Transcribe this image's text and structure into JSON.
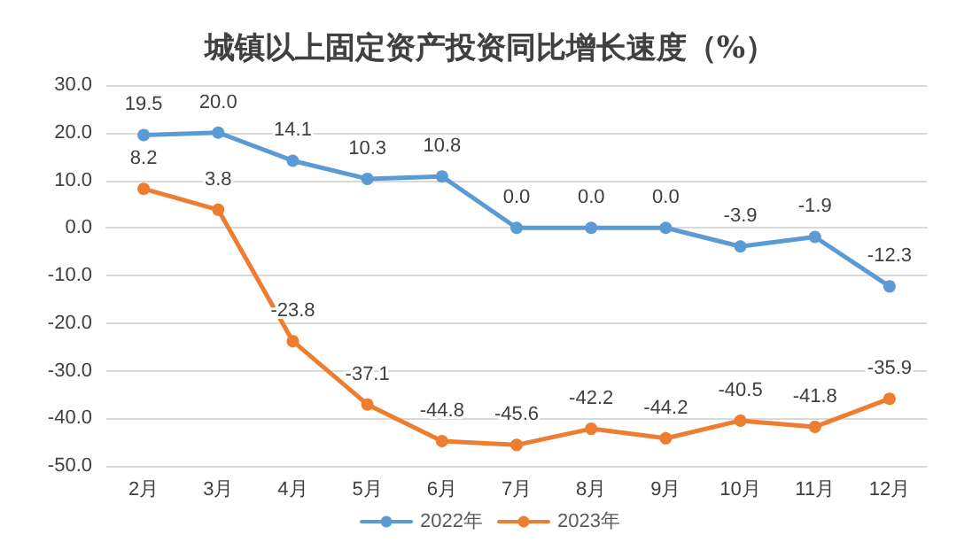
{
  "chart_data": {
    "type": "line",
    "title": "城镇以上固定资产投资同比增长速度（%）",
    "categories": [
      "2月",
      "3月",
      "4月",
      "5月",
      "6月",
      "7月",
      "8月",
      "9月",
      "10月",
      "11月",
      "12月"
    ],
    "series": [
      {
        "name": "2022年",
        "color": "#5b9bd5",
        "values": [
          19.5,
          20.0,
          14.1,
          10.3,
          10.8,
          0.0,
          0.0,
          0.0,
          -3.9,
          -1.9,
          -12.3
        ],
        "value_labels": [
          "19.5",
          "20.0",
          "14.1",
          "10.3",
          "10.8",
          "0.0",
          "0.0",
          "0.0",
          "-3.9",
          "-1.9",
          "-12.3"
        ]
      },
      {
        "name": "2023年",
        "color": "#ed7d31",
        "values": [
          8.2,
          3.8,
          -23.8,
          -37.1,
          -44.8,
          -45.6,
          -42.2,
          -44.2,
          -40.5,
          -41.8,
          -35.9
        ],
        "value_labels": [
          "8.2",
          "3.8",
          "-23.8",
          "-37.1",
          "-44.8",
          "-45.6",
          "-42.2",
          "-44.2",
          "-40.5",
          "-41.8",
          "-35.9"
        ]
      }
    ],
    "ylim": [
      -50,
      30
    ],
    "yticks": [
      {
        "value": -50,
        "label": "-50.0"
      },
      {
        "value": -40,
        "label": "-40.0"
      },
      {
        "value": -30,
        "label": "-30.0"
      },
      {
        "value": -20,
        "label": "-20.0"
      },
      {
        "value": -10,
        "label": "-10.0"
      },
      {
        "value": 0,
        "label": "0.0"
      },
      {
        "value": 10,
        "label": "10.0"
      },
      {
        "value": 20,
        "label": "20.0"
      },
      {
        "value": 30,
        "label": "30.0"
      }
    ],
    "grid": "y",
    "legend": "bottom",
    "marker": "circle",
    "line_style": "solid"
  }
}
